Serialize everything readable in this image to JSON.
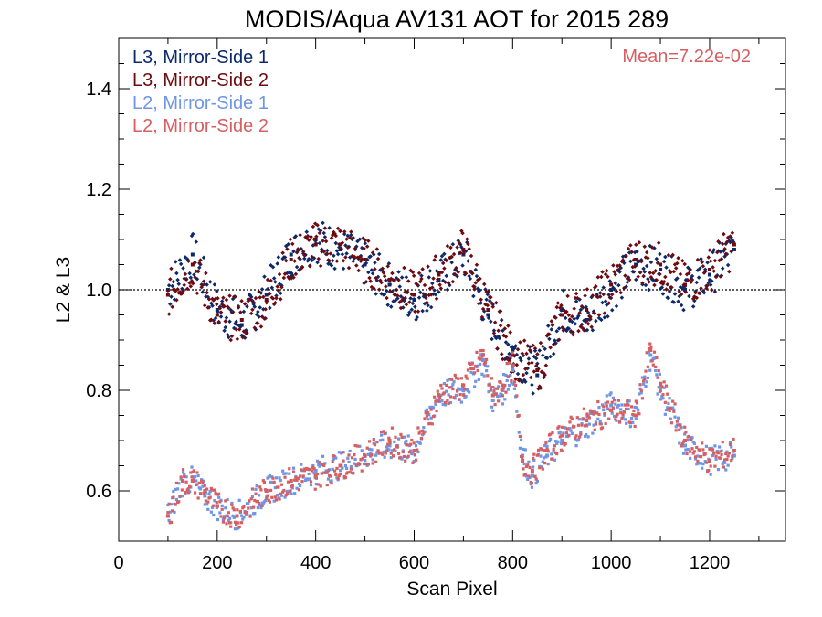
{
  "chart_data": {
    "type": "scatter",
    "title": "MODIS/Aqua AV131 AOT for 2015 289",
    "xlabel": "Scan Pixel",
    "ylabel": "L2 & L3",
    "xlim": [
      0,
      1354
    ],
    "ylim": [
      0.5,
      1.5
    ],
    "x_ticks": [
      0,
      200,
      400,
      600,
      800,
      1000,
      1200
    ],
    "y_ticks": [
      0.6,
      0.8,
      1.0,
      1.2,
      1.4
    ],
    "x_tick_labels": [
      "0",
      "200",
      "400",
      "600",
      "800",
      "1000",
      "1200"
    ],
    "y_tick_labels": [
      "0.6",
      "0.8",
      "1.0",
      "1.2",
      "1.4"
    ],
    "reference_line": {
      "y": 1.0,
      "style": "dotted"
    },
    "annotation": "Mean=7.22e-02",
    "legend_position": "top-left",
    "series": [
      {
        "name": "L3, Mirror-Side 1",
        "color": "#0c2a6b",
        "x": [
          100,
          150,
          200,
          250,
          300,
          350,
          400,
          450,
          500,
          550,
          600,
          650,
          700,
          750,
          800,
          850,
          900,
          950,
          1000,
          1050,
          1100,
          1150,
          1200,
          1250
        ],
        "y": [
          1.0,
          1.07,
          0.96,
          0.93,
          0.99,
          1.07,
          1.1,
          1.08,
          1.05,
          1.01,
          0.98,
          1.02,
          1.07,
          0.95,
          0.88,
          0.83,
          0.96,
          0.94,
          1.0,
          1.05,
          1.04,
          1.0,
          1.03,
          1.08
        ]
      },
      {
        "name": "L3, Mirror-Side 2",
        "color": "#6e0a10",
        "x": [
          100,
          150,
          200,
          250,
          300,
          350,
          400,
          450,
          500,
          550,
          600,
          650,
          700,
          750,
          800,
          850,
          900,
          950,
          1000,
          1050,
          1100,
          1150,
          1200,
          1250
        ],
        "y": [
          0.99,
          1.05,
          0.95,
          0.94,
          0.98,
          1.06,
          1.09,
          1.09,
          1.06,
          1.02,
          0.99,
          1.03,
          1.08,
          0.96,
          0.87,
          0.84,
          0.95,
          0.96,
          1.01,
          1.06,
          1.05,
          1.01,
          1.04,
          1.09
        ]
      },
      {
        "name": "L2, Mirror-Side 1",
        "color": "#6f95e6",
        "x": [
          100,
          130,
          150,
          175,
          200,
          240,
          300,
          350,
          400,
          450,
          500,
          550,
          600,
          650,
          700,
          740,
          760,
          780,
          800,
          820,
          840,
          870,
          900,
          950,
          1000,
          1050,
          1080,
          1100,
          1150,
          1200,
          1250
        ],
        "y": [
          0.55,
          0.62,
          0.62,
          0.59,
          0.57,
          0.55,
          0.6,
          0.62,
          0.64,
          0.65,
          0.67,
          0.69,
          0.68,
          0.79,
          0.8,
          0.86,
          0.78,
          0.8,
          0.84,
          0.67,
          0.63,
          0.67,
          0.7,
          0.73,
          0.77,
          0.75,
          0.87,
          0.8,
          0.69,
          0.66,
          0.67
        ]
      },
      {
        "name": "L2, Mirror-Side 2",
        "color": "#d65f62",
        "x": [
          100,
          130,
          150,
          175,
          200,
          240,
          300,
          350,
          400,
          450,
          500,
          550,
          600,
          650,
          700,
          740,
          760,
          780,
          800,
          820,
          840,
          870,
          900,
          950,
          1000,
          1050,
          1080,
          1100,
          1150,
          1200,
          1250
        ],
        "y": [
          0.55,
          0.62,
          0.62,
          0.6,
          0.57,
          0.55,
          0.6,
          0.62,
          0.63,
          0.65,
          0.67,
          0.7,
          0.68,
          0.79,
          0.81,
          0.87,
          0.79,
          0.81,
          0.85,
          0.66,
          0.64,
          0.68,
          0.71,
          0.74,
          0.76,
          0.75,
          0.88,
          0.81,
          0.7,
          0.66,
          0.68
        ]
      }
    ]
  }
}
